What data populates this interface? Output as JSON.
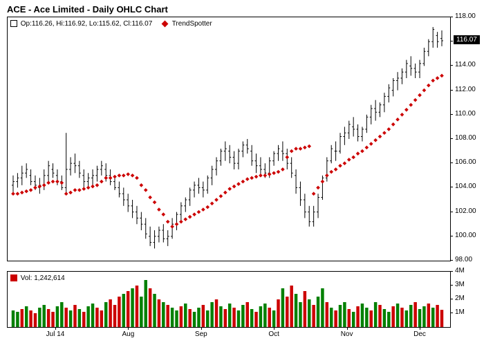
{
  "title": "ACE - Ace Limited - Daily OHLC Chart",
  "legend": {
    "ohlc_text": "Op:116.26, Hi:116.92, Lo:115.62, Cl:116.07",
    "trend_text": "TrendSpotter"
  },
  "volume_legend": "Vol: 1,242,614",
  "price_marker": "116.07",
  "price_axis": {
    "min": 98,
    "max": 118,
    "ticks": [
      98,
      100,
      102,
      104,
      106,
      108,
      110,
      112,
      114,
      116,
      118
    ],
    "labels": [
      "98.00",
      "100.00",
      "102.00",
      "104.00",
      "106.00",
      "108.00",
      "110.00",
      "112.00",
      "114.00",
      "116.00",
      "118.00"
    ]
  },
  "volume_axis": {
    "min": 0,
    "max": 4000000,
    "ticks": [
      1000000,
      2000000,
      3000000,
      4000000
    ],
    "labels": [
      "1M",
      "2M",
      "3M",
      "4M"
    ]
  },
  "x_axis": {
    "labels": [
      "Jul 14",
      "Aug",
      "Sep",
      "Oct",
      "Nov",
      "Dec"
    ],
    "positions": [
      0.1,
      0.27,
      0.44,
      0.61,
      0.78,
      0.95
    ]
  },
  "colors": {
    "ohlc": "#000000",
    "trend": "#cc0000",
    "vol_up": "#008000",
    "vol_down": "#cc0000",
    "border": "#000000",
    "bg": "#ffffff"
  },
  "ohlc": [
    {
      "o": 104.2,
      "h": 105.0,
      "l": 103.5,
      "c": 104.5
    },
    {
      "o": 104.5,
      "h": 105.2,
      "l": 104.0,
      "c": 104.8
    },
    {
      "o": 104.8,
      "h": 105.8,
      "l": 104.2,
      "c": 105.2
    },
    {
      "o": 105.2,
      "h": 106.0,
      "l": 104.8,
      "c": 105.5
    },
    {
      "o": 105.0,
      "h": 105.5,
      "l": 104.2,
      "c": 104.5
    },
    {
      "o": 104.5,
      "h": 105.0,
      "l": 103.8,
      "c": 104.2
    },
    {
      "o": 104.0,
      "h": 104.8,
      "l": 103.5,
      "c": 104.2
    },
    {
      "o": 104.2,
      "h": 105.5,
      "l": 103.8,
      "c": 105.0
    },
    {
      "o": 105.0,
      "h": 106.2,
      "l": 104.5,
      "c": 105.8
    },
    {
      "o": 105.5,
      "h": 106.0,
      "l": 104.8,
      "c": 105.2
    },
    {
      "o": 105.0,
      "h": 105.5,
      "l": 104.2,
      "c": 104.5
    },
    {
      "o": 104.5,
      "h": 105.0,
      "l": 103.8,
      "c": 104.0
    },
    {
      "o": 104.0,
      "h": 108.5,
      "l": 103.5,
      "c": 105.5
    },
    {
      "o": 105.5,
      "h": 106.5,
      "l": 105.0,
      "c": 106.0
    },
    {
      "o": 106.0,
      "h": 106.8,
      "l": 105.2,
      "c": 105.8
    },
    {
      "o": 105.8,
      "h": 106.2,
      "l": 104.8,
      "c": 105.2
    },
    {
      "o": 105.0,
      "h": 105.5,
      "l": 104.0,
      "c": 104.5
    },
    {
      "o": 104.5,
      "h": 105.2,
      "l": 104.0,
      "c": 104.8
    },
    {
      "o": 104.8,
      "h": 105.5,
      "l": 104.2,
      "c": 105.0
    },
    {
      "o": 105.0,
      "h": 105.8,
      "l": 104.5,
      "c": 105.5
    },
    {
      "o": 105.5,
      "h": 106.2,
      "l": 105.0,
      "c": 105.8
    },
    {
      "o": 105.5,
      "h": 106.0,
      "l": 104.5,
      "c": 105.0
    },
    {
      "o": 105.0,
      "h": 105.5,
      "l": 104.2,
      "c": 104.5
    },
    {
      "o": 104.5,
      "h": 105.0,
      "l": 103.8,
      "c": 104.0
    },
    {
      "o": 104.0,
      "h": 104.5,
      "l": 103.2,
      "c": 103.5
    },
    {
      "o": 103.5,
      "h": 104.0,
      "l": 102.5,
      "c": 103.0
    },
    {
      "o": 103.0,
      "h": 103.5,
      "l": 102.0,
      "c": 102.5
    },
    {
      "o": 102.5,
      "h": 103.0,
      "l": 101.5,
      "c": 102.0
    },
    {
      "o": 102.0,
      "h": 102.5,
      "l": 101.0,
      "c": 101.5
    },
    {
      "o": 101.5,
      "h": 102.0,
      "l": 100.5,
      "c": 101.0
    },
    {
      "o": 101.0,
      "h": 101.5,
      "l": 99.8,
      "c": 100.2
    },
    {
      "o": 100.0,
      "h": 100.8,
      "l": 99.2,
      "c": 99.5
    },
    {
      "o": 99.5,
      "h": 100.5,
      "l": 99.0,
      "c": 100.0
    },
    {
      "o": 100.0,
      "h": 100.8,
      "l": 99.5,
      "c": 100.5
    },
    {
      "o": 100.5,
      "h": 101.0,
      "l": 99.5,
      "c": 99.8
    },
    {
      "o": 99.8,
      "h": 100.5,
      "l": 99.2,
      "c": 100.0
    },
    {
      "o": 100.0,
      "h": 101.5,
      "l": 99.8,
      "c": 101.0
    },
    {
      "o": 101.0,
      "h": 102.0,
      "l": 100.5,
      "c": 101.8
    },
    {
      "o": 101.8,
      "h": 102.8,
      "l": 101.2,
      "c": 102.5
    },
    {
      "o": 102.5,
      "h": 103.2,
      "l": 102.0,
      "c": 103.0
    },
    {
      "o": 103.0,
      "h": 104.0,
      "l": 102.5,
      "c": 103.8
    },
    {
      "o": 103.8,
      "h": 104.5,
      "l": 103.2,
      "c": 104.2
    },
    {
      "o": 104.2,
      "h": 104.8,
      "l": 103.5,
      "c": 104.0
    },
    {
      "o": 104.0,
      "h": 104.5,
      "l": 103.2,
      "c": 103.8
    },
    {
      "o": 103.8,
      "h": 105.0,
      "l": 103.5,
      "c": 104.8
    },
    {
      "o": 104.8,
      "h": 105.8,
      "l": 104.2,
      "c": 105.5
    },
    {
      "o": 105.5,
      "h": 106.5,
      "l": 105.0,
      "c": 106.2
    },
    {
      "o": 106.2,
      "h": 107.2,
      "l": 105.8,
      "c": 107.0
    },
    {
      "o": 107.0,
      "h": 107.8,
      "l": 106.2,
      "c": 107.2
    },
    {
      "o": 107.0,
      "h": 107.5,
      "l": 106.0,
      "c": 106.5
    },
    {
      "o": 106.5,
      "h": 107.0,
      "l": 105.5,
      "c": 106.0
    },
    {
      "o": 106.0,
      "h": 107.2,
      "l": 105.5,
      "c": 107.0
    },
    {
      "o": 107.0,
      "h": 107.8,
      "l": 106.5,
      "c": 107.5
    },
    {
      "o": 107.5,
      "h": 108.0,
      "l": 106.8,
      "c": 107.2
    },
    {
      "o": 107.0,
      "h": 107.5,
      "l": 105.8,
      "c": 106.2
    },
    {
      "o": 106.2,
      "h": 106.8,
      "l": 105.2,
      "c": 105.8
    },
    {
      "o": 105.8,
      "h": 106.5,
      "l": 105.0,
      "c": 105.5
    },
    {
      "o": 105.5,
      "h": 106.0,
      "l": 104.8,
      "c": 105.2
    },
    {
      "o": 105.2,
      "h": 106.5,
      "l": 104.8,
      "c": 106.2
    },
    {
      "o": 106.2,
      "h": 107.0,
      "l": 105.8,
      "c": 106.8
    },
    {
      "o": 106.8,
      "h": 107.5,
      "l": 106.2,
      "c": 107.2
    },
    {
      "o": 107.0,
      "h": 107.8,
      "l": 106.2,
      "c": 106.8
    },
    {
      "o": 106.8,
      "h": 107.2,
      "l": 105.5,
      "c": 106.0
    },
    {
      "o": 106.0,
      "h": 106.5,
      "l": 104.8,
      "c": 105.2
    },
    {
      "o": 105.0,
      "h": 105.5,
      "l": 103.5,
      "c": 104.0
    },
    {
      "o": 104.0,
      "h": 104.5,
      "l": 102.5,
      "c": 103.0
    },
    {
      "o": 103.0,
      "h": 103.5,
      "l": 101.5,
      "c": 102.0
    },
    {
      "o": 102.0,
      "h": 102.5,
      "l": 100.8,
      "c": 101.2
    },
    {
      "o": 101.2,
      "h": 102.5,
      "l": 100.8,
      "c": 102.0
    },
    {
      "o": 102.0,
      "h": 103.5,
      "l": 101.5,
      "c": 103.2
    },
    {
      "o": 103.2,
      "h": 105.0,
      "l": 103.0,
      "c": 104.8
    },
    {
      "o": 104.8,
      "h": 106.5,
      "l": 104.5,
      "c": 106.2
    },
    {
      "o": 106.2,
      "h": 107.5,
      "l": 106.0,
      "c": 107.2
    },
    {
      "o": 107.0,
      "h": 107.8,
      "l": 106.2,
      "c": 107.0
    },
    {
      "o": 107.0,
      "h": 108.5,
      "l": 106.8,
      "c": 108.2
    },
    {
      "o": 108.2,
      "h": 109.0,
      "l": 107.5,
      "c": 108.5
    },
    {
      "o": 108.5,
      "h": 109.5,
      "l": 108.0,
      "c": 109.2
    },
    {
      "o": 109.0,
      "h": 109.8,
      "l": 108.2,
      "c": 108.8
    },
    {
      "o": 108.8,
      "h": 109.2,
      "l": 107.8,
      "c": 108.2
    },
    {
      "o": 108.2,
      "h": 109.0,
      "l": 107.8,
      "c": 108.8
    },
    {
      "o": 108.8,
      "h": 110.0,
      "l": 108.5,
      "c": 109.8
    },
    {
      "o": 109.8,
      "h": 110.8,
      "l": 109.2,
      "c": 110.5
    },
    {
      "o": 110.5,
      "h": 111.2,
      "l": 109.5,
      "c": 110.2
    },
    {
      "o": 110.2,
      "h": 111.0,
      "l": 109.8,
      "c": 110.8
    },
    {
      "o": 110.8,
      "h": 111.8,
      "l": 110.2,
      "c": 111.5
    },
    {
      "o": 111.5,
      "h": 112.5,
      "l": 111.0,
      "c": 112.2
    },
    {
      "o": 112.0,
      "h": 113.0,
      "l": 111.5,
      "c": 112.8
    },
    {
      "o": 112.8,
      "h": 113.5,
      "l": 112.0,
      "c": 113.0
    },
    {
      "o": 113.0,
      "h": 113.8,
      "l": 112.5,
      "c": 113.5
    },
    {
      "o": 113.5,
      "h": 114.5,
      "l": 113.0,
      "c": 114.2
    },
    {
      "o": 114.0,
      "h": 114.8,
      "l": 113.2,
      "c": 113.8
    },
    {
      "o": 113.8,
      "h": 114.2,
      "l": 113.0,
      "c": 113.5
    },
    {
      "o": 113.5,
      "h": 114.5,
      "l": 113.0,
      "c": 114.2
    },
    {
      "o": 114.2,
      "h": 115.5,
      "l": 114.0,
      "c": 115.2
    },
    {
      "o": 115.2,
      "h": 116.2,
      "l": 114.8,
      "c": 116.0
    },
    {
      "o": 116.0,
      "h": 117.2,
      "l": 115.5,
      "c": 117.0
    },
    {
      "o": 116.5,
      "h": 116.8,
      "l": 115.5,
      "c": 116.0
    },
    {
      "o": 116.26,
      "h": 116.92,
      "l": 115.62,
      "c": 116.07
    }
  ],
  "trend": [
    103.5,
    103.5,
    103.6,
    103.7,
    103.8,
    104.0,
    104.1,
    104.2,
    104.4,
    104.5,
    104.5,
    104.4,
    103.5,
    103.6,
    103.8,
    103.8,
    103.9,
    104.0,
    104.1,
    104.2,
    104.5,
    104.8,
    104.8,
    104.9,
    105.0,
    105.0,
    105.1,
    105.0,
    104.8,
    104.2,
    103.8,
    103.2,
    102.8,
    102.2,
    101.8,
    101.2,
    100.8,
    101.0,
    101.2,
    101.4,
    101.6,
    101.8,
    102.0,
    102.2,
    102.4,
    102.7,
    103.0,
    103.3,
    103.6,
    103.9,
    104.1,
    104.3,
    104.5,
    104.7,
    104.8,
    104.9,
    105.0,
    105.0,
    105.1,
    105.2,
    105.3,
    105.5,
    106.5,
    107.0,
    107.2,
    107.2,
    107.3,
    107.4,
    103.5,
    104.0,
    104.5,
    105.0,
    105.3,
    105.5,
    105.8,
    106.0,
    106.3,
    106.5,
    106.8,
    107.0,
    107.3,
    107.6,
    107.9,
    108.2,
    108.5,
    108.8,
    109.2,
    109.6,
    110.0,
    110.4,
    110.8,
    111.2,
    111.6,
    112.0,
    112.4,
    112.8,
    113.0,
    113.2
  ],
  "volumes": [
    {
      "v": 1200000,
      "d": "u"
    },
    {
      "v": 1100000,
      "d": "u"
    },
    {
      "v": 1300000,
      "d": "d"
    },
    {
      "v": 1500000,
      "d": "u"
    },
    {
      "v": 1200000,
      "d": "d"
    },
    {
      "v": 1000000,
      "d": "d"
    },
    {
      "v": 1400000,
      "d": "u"
    },
    {
      "v": 1600000,
      "d": "u"
    },
    {
      "v": 1300000,
      "d": "d"
    },
    {
      "v": 1100000,
      "d": "d"
    },
    {
      "v": 1500000,
      "d": "u"
    },
    {
      "v": 1800000,
      "d": "u"
    },
    {
      "v": 1400000,
      "d": "d"
    },
    {
      "v": 1200000,
      "d": "u"
    },
    {
      "v": 1600000,
      "d": "d"
    },
    {
      "v": 1300000,
      "d": "u"
    },
    {
      "v": 1100000,
      "d": "d"
    },
    {
      "v": 1500000,
      "d": "u"
    },
    {
      "v": 1700000,
      "d": "u"
    },
    {
      "v": 1400000,
      "d": "d"
    },
    {
      "v": 1200000,
      "d": "d"
    },
    {
      "v": 1800000,
      "d": "u"
    },
    {
      "v": 2000000,
      "d": "d"
    },
    {
      "v": 1600000,
      "d": "d"
    },
    {
      "v": 2200000,
      "d": "d"
    },
    {
      "v": 2400000,
      "d": "u"
    },
    {
      "v": 2600000,
      "d": "d"
    },
    {
      "v": 2800000,
      "d": "u"
    },
    {
      "v": 3000000,
      "d": "d"
    },
    {
      "v": 2200000,
      "d": "u"
    },
    {
      "v": 3400000,
      "d": "u"
    },
    {
      "v": 2800000,
      "d": "d"
    },
    {
      "v": 2400000,
      "d": "u"
    },
    {
      "v": 2000000,
      "d": "d"
    },
    {
      "v": 1800000,
      "d": "u"
    },
    {
      "v": 1600000,
      "d": "d"
    },
    {
      "v": 1400000,
      "d": "u"
    },
    {
      "v": 1200000,
      "d": "u"
    },
    {
      "v": 1500000,
      "d": "d"
    },
    {
      "v": 1700000,
      "d": "u"
    },
    {
      "v": 1300000,
      "d": "d"
    },
    {
      "v": 1100000,
      "d": "u"
    },
    {
      "v": 1400000,
      "d": "u"
    },
    {
      "v": 1600000,
      "d": "d"
    },
    {
      "v": 1200000,
      "d": "u"
    },
    {
      "v": 1800000,
      "d": "u"
    },
    {
      "v": 2000000,
      "d": "d"
    },
    {
      "v": 1500000,
      "d": "u"
    },
    {
      "v": 1300000,
      "d": "d"
    },
    {
      "v": 1700000,
      "d": "u"
    },
    {
      "v": 1400000,
      "d": "d"
    },
    {
      "v": 1200000,
      "d": "u"
    },
    {
      "v": 1600000,
      "d": "u"
    },
    {
      "v": 1800000,
      "d": "d"
    },
    {
      "v": 1300000,
      "d": "u"
    },
    {
      "v": 1100000,
      "d": "d"
    },
    {
      "v": 1500000,
      "d": "u"
    },
    {
      "v": 1700000,
      "d": "u"
    },
    {
      "v": 1400000,
      "d": "d"
    },
    {
      "v": 1200000,
      "d": "u"
    },
    {
      "v": 2000000,
      "d": "d"
    },
    {
      "v": 2800000,
      "d": "u"
    },
    {
      "v": 2200000,
      "d": "d"
    },
    {
      "v": 3000000,
      "d": "d"
    },
    {
      "v": 2400000,
      "d": "u"
    },
    {
      "v": 1800000,
      "d": "u"
    },
    {
      "v": 2600000,
      "d": "d"
    },
    {
      "v": 2000000,
      "d": "u"
    },
    {
      "v": 1600000,
      "d": "d"
    },
    {
      "v": 2200000,
      "d": "u"
    },
    {
      "v": 2800000,
      "d": "u"
    },
    {
      "v": 1800000,
      "d": "d"
    },
    {
      "v": 1400000,
      "d": "u"
    },
    {
      "v": 1200000,
      "d": "d"
    },
    {
      "v": 1600000,
      "d": "u"
    },
    {
      "v": 1800000,
      "d": "u"
    },
    {
      "v": 1300000,
      "d": "d"
    },
    {
      "v": 1100000,
      "d": "u"
    },
    {
      "v": 1500000,
      "d": "d"
    },
    {
      "v": 1700000,
      "d": "u"
    },
    {
      "v": 1400000,
      "d": "u"
    },
    {
      "v": 1200000,
      "d": "d"
    },
    {
      "v": 1800000,
      "d": "u"
    },
    {
      "v": 1600000,
      "d": "d"
    },
    {
      "v": 1300000,
      "d": "u"
    },
    {
      "v": 1100000,
      "d": "u"
    },
    {
      "v": 1500000,
      "d": "d"
    },
    {
      "v": 1700000,
      "d": "u"
    },
    {
      "v": 1400000,
      "d": "d"
    },
    {
      "v": 1200000,
      "d": "u"
    },
    {
      "v": 1600000,
      "d": "u"
    },
    {
      "v": 1800000,
      "d": "d"
    },
    {
      "v": 1300000,
      "d": "u"
    },
    {
      "v": 1500000,
      "d": "u"
    },
    {
      "v": 1700000,
      "d": "d"
    },
    {
      "v": 1400000,
      "d": "u"
    },
    {
      "v": 1600000,
      "d": "d"
    },
    {
      "v": 1242614,
      "d": "d"
    }
  ]
}
